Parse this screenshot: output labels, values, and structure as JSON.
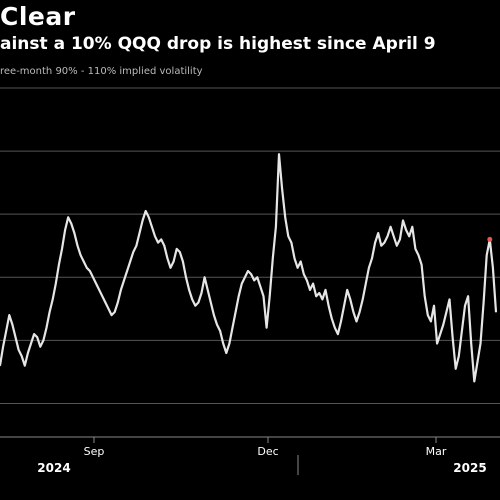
{
  "header": {
    "title": "Clear",
    "subtitle": "ainst a 10% QQQ drop is highest since April 9",
    "note": "ree-month 90% - 110% implied volatility"
  },
  "chart_data": {
    "type": "line",
    "title": "Clear",
    "subtitle": "ainst a 10% QQQ drop is highest since April 9",
    "x_ticks": [
      "Sep",
      "Dec",
      "Mar"
    ],
    "year_labels": [
      "2024",
      "2025"
    ],
    "grid": true,
    "series": [
      {
        "line_color": "#e6e6e6",
        "values": [
          5.2,
          5.8,
          6.3,
          6.8,
          6.5,
          6.1,
          5.7,
          5.5,
          5.2,
          5.6,
          5.9,
          6.2,
          6.1,
          5.8,
          6.0,
          6.4,
          6.9,
          7.3,
          7.8,
          8.4,
          8.9,
          9.5,
          9.9,
          9.7,
          9.4,
          9.0,
          8.7,
          8.5,
          8.3,
          8.2,
          8.0,
          7.8,
          7.6,
          7.4,
          7.2,
          7.0,
          6.8,
          6.9,
          7.2,
          7.6,
          7.9,
          8.2,
          8.5,
          8.8,
          9.0,
          9.4,
          9.8,
          10.1,
          9.9,
          9.6,
          9.3,
          9.1,
          9.2,
          9.0,
          8.6,
          8.3,
          8.5,
          8.9,
          8.8,
          8.5,
          8.0,
          7.6,
          7.3,
          7.1,
          7.2,
          7.5,
          8.0,
          7.6,
          7.2,
          6.8,
          6.5,
          6.3,
          5.9,
          5.6,
          5.9,
          6.4,
          6.9,
          7.4,
          7.8,
          8.0,
          8.2,
          8.1,
          7.9,
          8.0,
          7.7,
          7.4,
          6.4,
          7.4,
          8.6,
          9.6,
          11.9,
          10.8,
          9.9,
          9.3,
          9.1,
          8.6,
          8.3,
          8.5,
          8.1,
          7.9,
          7.6,
          7.8,
          7.4,
          7.5,
          7.3,
          7.6,
          7.1,
          6.7,
          6.4,
          6.2,
          6.6,
          7.1,
          7.6,
          7.3,
          6.9,
          6.6,
          6.9,
          7.3,
          7.8,
          8.3,
          8.6,
          9.1,
          9.4,
          9.0,
          9.1,
          9.3,
          9.6,
          9.3,
          9.0,
          9.2,
          9.8,
          9.5,
          9.3,
          9.6,
          8.9,
          8.7,
          8.4,
          7.4,
          6.8,
          6.6,
          7.1,
          5.9,
          6.2,
          6.5,
          6.9,
          7.3,
          6.1,
          5.1,
          5.5,
          6.3,
          7.1,
          7.4,
          5.9,
          4.7,
          5.3,
          5.9,
          7.2,
          8.7,
          9.2,
          8.3,
          6.9
        ],
        "marker_color": "#e05a4f"
      }
    ],
    "ylim": [
      3,
      14
    ]
  }
}
